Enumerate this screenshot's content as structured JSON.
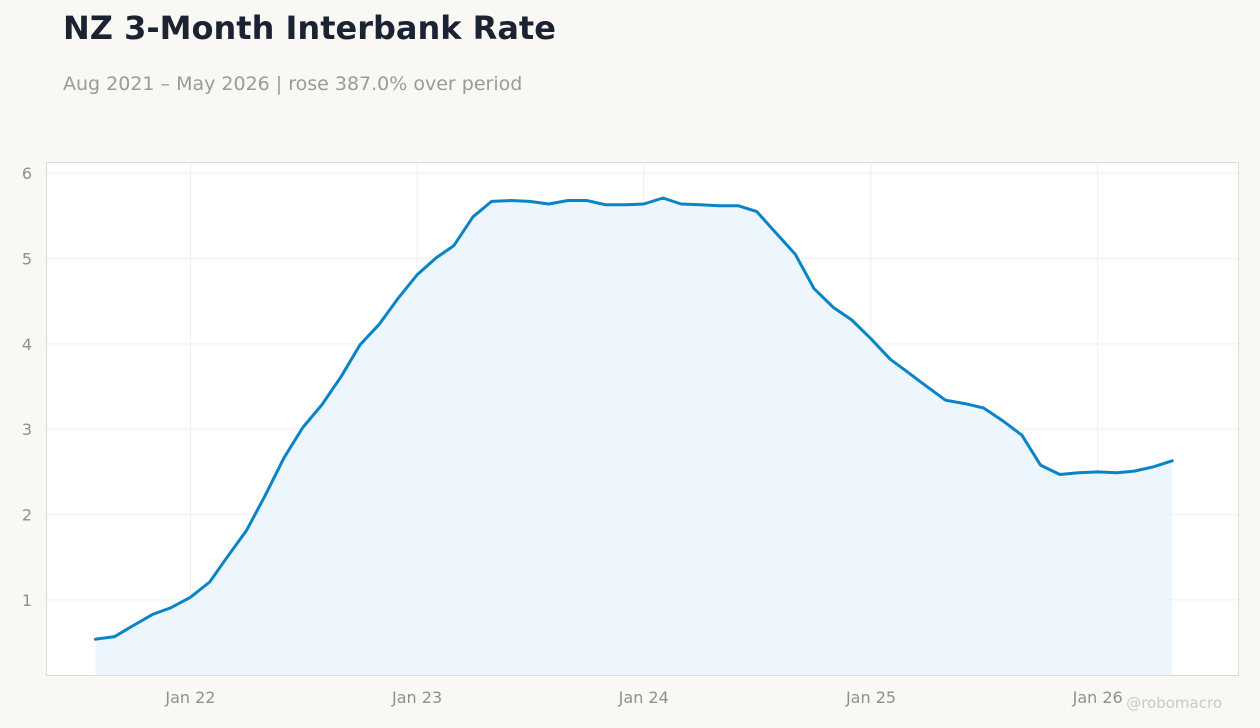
{
  "header": {
    "title": "NZ 3-Month Interbank Rate",
    "subtitle": "Aug 2021 – May 2026 | rose 387.0% over period"
  },
  "watermark": "@robomacro",
  "colors": {
    "line": "#0a84c6",
    "fill": "#eaf4fb",
    "background": "#f9f8f4",
    "plot_background": "#ffffff"
  },
  "chart_data": {
    "type": "area",
    "title": "NZ 3-Month Interbank Rate",
    "subtitle": "Aug 2021 – May 2026 | rose 387.0% over period",
    "xlabel": "",
    "ylabel": "",
    "x_range": [
      "2021-05-15",
      "2026-08-15"
    ],
    "ylim": [
      0.12,
      6.12
    ],
    "yticks": [
      1,
      2,
      3,
      4,
      5,
      6
    ],
    "xticks": [
      {
        "date": "2022-01-01",
        "label": "Jan 22"
      },
      {
        "date": "2023-01-01",
        "label": "Jan 23"
      },
      {
        "date": "2024-01-01",
        "label": "Jan 24"
      },
      {
        "date": "2025-01-01",
        "label": "Jan 25"
      },
      {
        "date": "2026-01-01",
        "label": "Jan 26"
      }
    ],
    "grid": true,
    "legend": "none",
    "series": [
      {
        "x": [
          "2021-08-01",
          "2021-09-01",
          "2021-10-01",
          "2021-11-01",
          "2021-12-01",
          "2022-01-01",
          "2022-02-01",
          "2022-03-01",
          "2022-04-01",
          "2022-05-01",
          "2022-06-01",
          "2022-07-01",
          "2022-08-01",
          "2022-09-01",
          "2022-10-01",
          "2022-11-01",
          "2022-12-01",
          "2023-01-01",
          "2023-02-01",
          "2023-03-01",
          "2023-04-01",
          "2023-05-01",
          "2023-06-01",
          "2023-07-01",
          "2023-08-01",
          "2023-09-01",
          "2023-10-01",
          "2023-11-01",
          "2023-12-01",
          "2024-01-01",
          "2024-02-01",
          "2024-03-01",
          "2024-04-01",
          "2024-05-01",
          "2024-06-01",
          "2024-07-01",
          "2024-08-01",
          "2024-09-01",
          "2024-10-01",
          "2024-11-01",
          "2024-12-01",
          "2025-01-01",
          "2025-02-01",
          "2025-03-01",
          "2025-04-01",
          "2025-05-01",
          "2025-06-01",
          "2025-07-01",
          "2025-08-01",
          "2025-09-01",
          "2025-10-01",
          "2025-11-01",
          "2025-12-01",
          "2026-01-01",
          "2026-02-01",
          "2026-03-01",
          "2026-04-01",
          "2026-05-01"
        ],
        "values": [
          0.54,
          0.57,
          0.7,
          0.83,
          0.91,
          1.03,
          1.21,
          1.5,
          1.81,
          2.22,
          2.67,
          3.02,
          3.29,
          3.62,
          3.99,
          4.23,
          4.53,
          4.81,
          5.01,
          5.15,
          5.49,
          5.67,
          5.68,
          5.67,
          5.64,
          5.68,
          5.68,
          5.63,
          5.63,
          5.64,
          5.71,
          5.64,
          5.63,
          5.62,
          5.62,
          5.55,
          5.3,
          5.05,
          4.65,
          4.43,
          4.28,
          4.06,
          3.82,
          3.67,
          3.5,
          3.34,
          3.3,
          3.25,
          3.1,
          2.93,
          2.58,
          2.47,
          2.49,
          2.5,
          2.49,
          2.51,
          2.56,
          2.63
        ]
      }
    ]
  }
}
